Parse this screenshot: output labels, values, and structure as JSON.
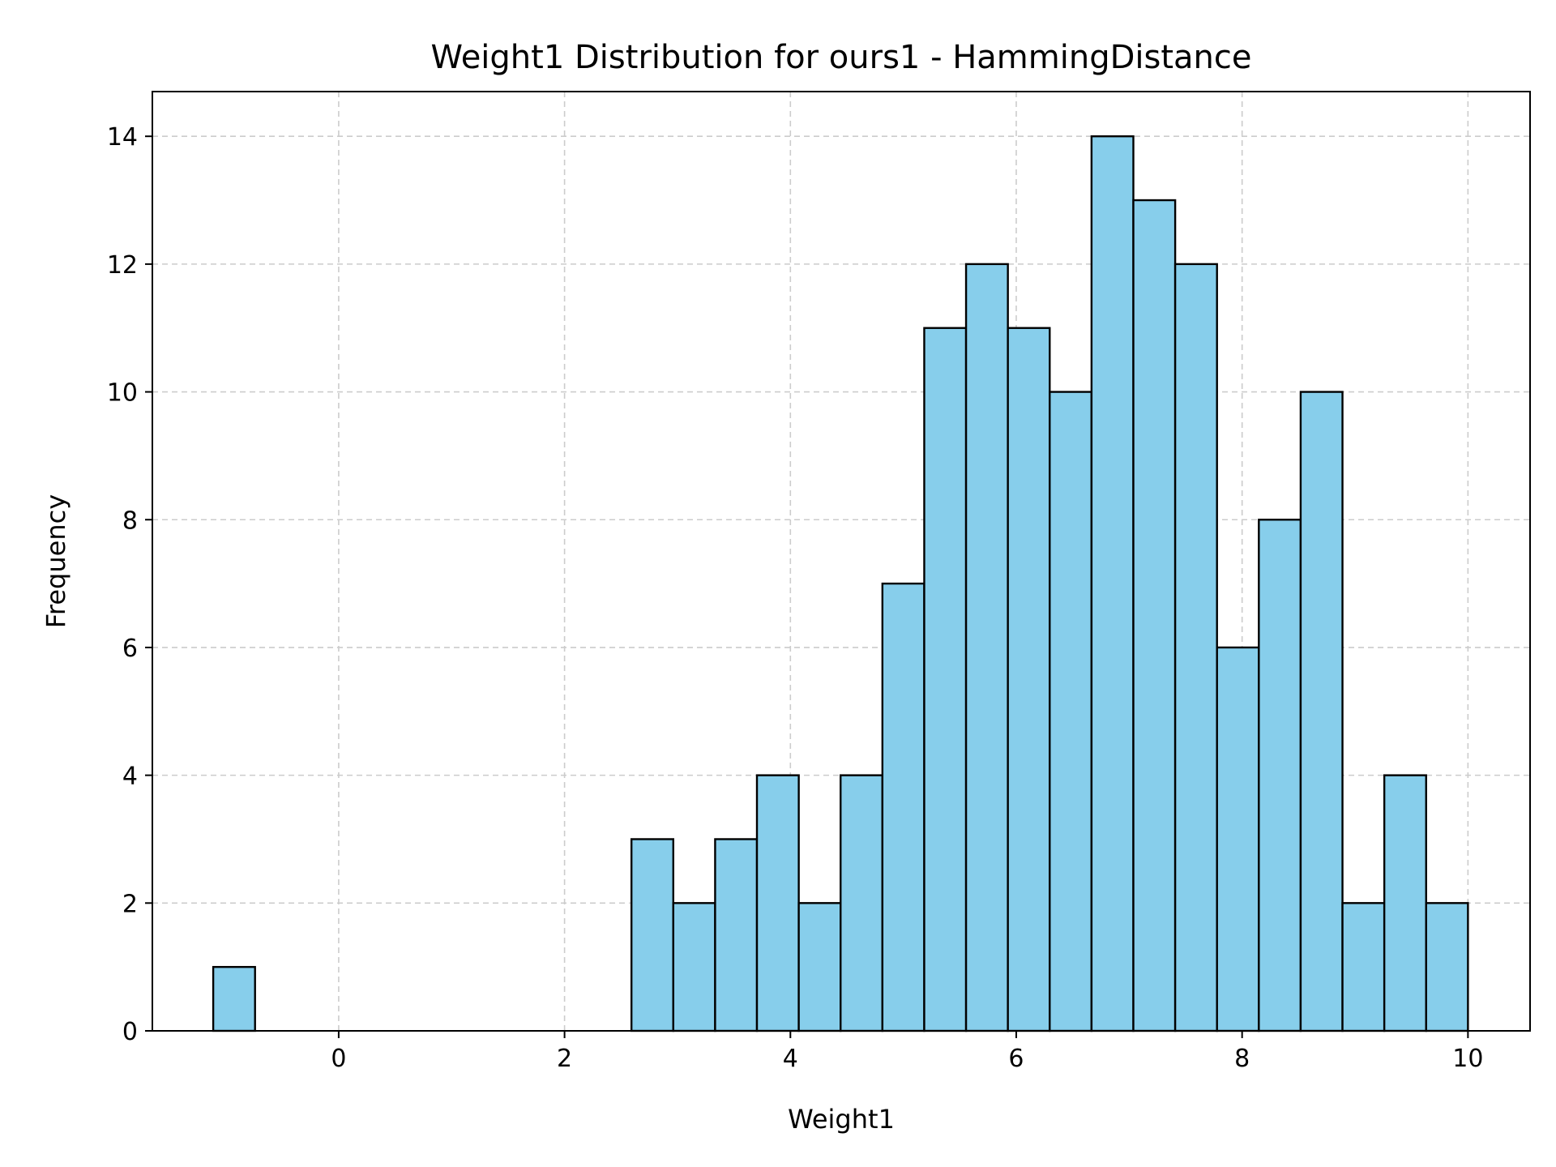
{
  "chart_data": {
    "type": "bar",
    "title": "Weight1 Distribution for ours1 - HammingDistance",
    "xlabel": "Weight1",
    "ylabel": "Frequency",
    "bin_range": [
      -1.111,
      10.0
    ],
    "bin_width": 0.3704,
    "values": [
      1,
      0,
      0,
      0,
      0,
      0,
      0,
      0,
      0,
      0,
      3,
      2,
      3,
      4,
      2,
      4,
      7,
      11,
      12,
      11,
      10,
      14,
      13,
      12,
      6,
      8,
      10,
      2,
      4,
      2
    ],
    "xlim": [
      -1.65,
      10.55
    ],
    "ylim": [
      0,
      14.7
    ],
    "xticks": [
      0,
      2,
      4,
      6,
      8,
      10
    ],
    "yticks": [
      0,
      2,
      4,
      6,
      8,
      10,
      12,
      14
    ],
    "grid": true,
    "bar_color": "#87CEEB",
    "edge_color": "#000000",
    "grid_color": "#cccccc"
  }
}
